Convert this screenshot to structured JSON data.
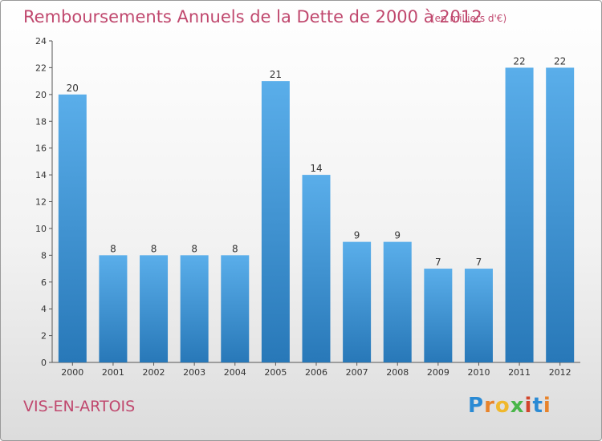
{
  "header": {
    "title": "Remboursements Annuels de la Dette de 2000 à 2012",
    "subtitle": "(en milliers d'€)"
  },
  "footer": {
    "town": "VIS-EN-ARTOIS",
    "logo_letters": [
      "P",
      "r",
      "o",
      "x",
      "i",
      "t",
      "i"
    ],
    "logo_colors": [
      "#2a8ad4",
      "#e8832a",
      "#f0b82c",
      "#49b649",
      "#d2452c",
      "#2a8ad4",
      "#e8832a"
    ]
  },
  "chart_data": {
    "type": "bar",
    "title": "Remboursements Annuels de la Dette de 2000 à 2012",
    "subtitle": "(en milliers d'€)",
    "categories": [
      "2000",
      "2001",
      "2002",
      "2003",
      "2004",
      "2005",
      "2006",
      "2007",
      "2008",
      "2009",
      "2010",
      "2011",
      "2012"
    ],
    "values": [
      20,
      8,
      8,
      8,
      8,
      21,
      14,
      9,
      9,
      7,
      7,
      22,
      22
    ],
    "ylim": [
      0,
      24
    ],
    "yticks": [
      0,
      2,
      4,
      6,
      8,
      10,
      12,
      14,
      16,
      18,
      20,
      22,
      24
    ],
    "grid": false,
    "bar_color_top": "#5aaeea",
    "bar_color_bottom": "#2878b8"
  }
}
